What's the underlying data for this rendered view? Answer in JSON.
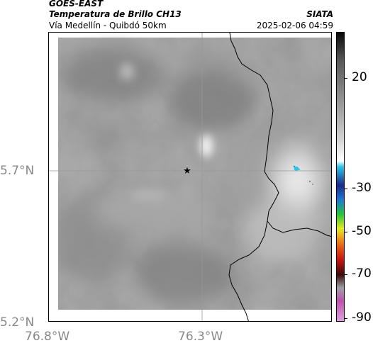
{
  "header": {
    "title_line1": "GOES-EAST",
    "title_line2": "Temperatura de Brillo CH13",
    "subtitle": "Vía Medellín - Quibdó 50km",
    "organization": "SIATA",
    "datetime": "2025-02-06 04:59"
  },
  "map": {
    "lat_labels": [
      "5.7°N",
      "5.2°N"
    ],
    "lon_labels": [
      "76.8°W",
      "76.3°W"
    ],
    "marker": "star-marker",
    "colors": {
      "field_light": "#c8c8c8",
      "field_mid": "#9a9a9a",
      "field_dark": "#7a7a7a",
      "border_line": "#000000",
      "cold_spot": "#29c6e6",
      "grid": "#999999"
    }
  },
  "colorbar": {
    "tick_labels": [
      "20",
      "-30",
      "-50",
      "-70",
      "-90"
    ],
    "colors": [
      "#0a0a0a",
      "#5a5a5a",
      "#9a9a9a",
      "#d8d8d8",
      "#ffffff",
      "#2ac6e8",
      "#1a2a8a",
      "#1a7ad8",
      "#22c838",
      "#e8e820",
      "#e86010",
      "#c81010",
      "#3a0a0a",
      "#a0a0a0",
      "#c050b0",
      "#e0a0e0"
    ]
  }
}
